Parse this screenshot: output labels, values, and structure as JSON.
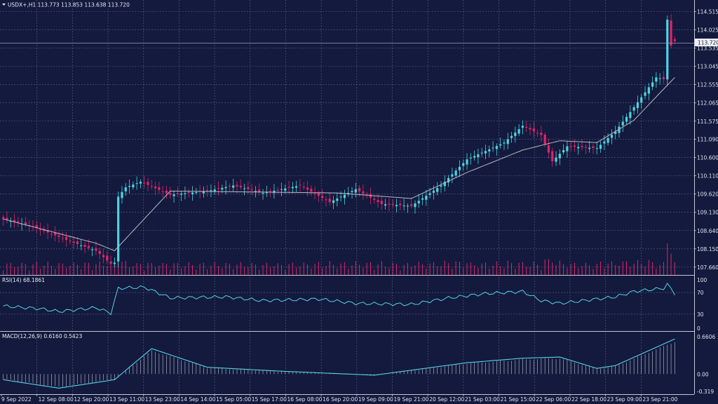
{
  "symbol_header": "USDX+,H1  113.773 113.853 113.638 113.720",
  "current_price_tag": "113.720",
  "price_axis_labels": [
    "114.515",
    "114.025",
    "113.535",
    "113.045",
    "112.555",
    "112.065",
    "111.575",
    "111.090",
    "110.600",
    "110.110",
    "109.620",
    "109.130",
    "108.640",
    "108.150",
    "107.660"
  ],
  "time_axis_labels": [
    "9 Sep 2022",
    "12 Sep 08:00",
    "12 Sep 20:00",
    "13 Sep 11:00",
    "13 Sep 23:00",
    "14 Sep 14:00",
    "15 Sep 05:00",
    "15 Sep 17:00",
    "16 Sep 08:00",
    "16 Sep 20:00",
    "19 Sep 09:00",
    "19 Sep 21:00",
    "20 Sep 12:00",
    "21 Sep 03:00",
    "21 Sep 15:00",
    "22 Sep 06:00",
    "22 Sep 18:00",
    "23 Sep 09:00",
    "23 Sep 21:00"
  ],
  "rsi_header": "RSI(14) 68.1861",
  "rsi_axis_labels": [
    "100",
    "70",
    "30",
    "0"
  ],
  "macd_header": "MACD(12,26,9) 0.6160 0.5423",
  "macd_axis_labels": [
    "0.6606",
    "0.00",
    "-0.319"
  ],
  "colors": {
    "background": "#131a3d",
    "bull": "#4fd3e0",
    "bear": "#e0246a",
    "ma": "#b8b8c4",
    "grid": "#5a6285",
    "indicator": "#57d2e6"
  },
  "chart_data": {
    "type": "candlestick",
    "symbol": "USDX+",
    "timeframe": "H1",
    "ohlc_last": {
      "open": 113.773,
      "high": 113.853,
      "low": 113.638,
      "close": 113.72
    },
    "ylim": [
      107.45,
      114.75
    ],
    "grid": true,
    "price_anchors": [
      {
        "t": 0,
        "p": 108.95
      },
      {
        "t": 8,
        "p": 108.75
      },
      {
        "t": 18,
        "p": 108.35
      },
      {
        "t": 25,
        "p": 108.1
      },
      {
        "t": 29,
        "p": 107.75
      },
      {
        "t": 30,
        "p": 107.78
      },
      {
        "t": 31,
        "p": 109.55
      },
      {
        "t": 33,
        "p": 109.8
      },
      {
        "t": 37,
        "p": 109.95
      },
      {
        "t": 45,
        "p": 109.6
      },
      {
        "t": 55,
        "p": 109.7
      },
      {
        "t": 62,
        "p": 109.85
      },
      {
        "t": 70,
        "p": 109.65
      },
      {
        "t": 80,
        "p": 109.85
      },
      {
        "t": 88,
        "p": 109.4
      },
      {
        "t": 95,
        "p": 109.75
      },
      {
        "t": 102,
        "p": 109.35
      },
      {
        "t": 110,
        "p": 109.3
      },
      {
        "t": 118,
        "p": 109.85
      },
      {
        "t": 125,
        "p": 110.55
      },
      {
        "t": 135,
        "p": 111.0
      },
      {
        "t": 140,
        "p": 111.45
      },
      {
        "t": 145,
        "p": 111.2
      },
      {
        "t": 148,
        "p": 110.5
      },
      {
        "t": 152,
        "p": 110.9
      },
      {
        "t": 160,
        "p": 110.85
      },
      {
        "t": 165,
        "p": 111.3
      },
      {
        "t": 170,
        "p": 111.95
      },
      {
        "t": 176,
        "p": 112.75
      },
      {
        "t": 178,
        "p": 112.7
      },
      {
        "t": 179,
        "p": 114.3
      },
      {
        "t": 180,
        "p": 113.6
      },
      {
        "t": 181,
        "p": 113.72
      }
    ],
    "ma_anchors": [
      {
        "t": 0,
        "p": 108.95
      },
      {
        "t": 25,
        "p": 108.3
      },
      {
        "t": 30,
        "p": 108.1
      },
      {
        "t": 45,
        "p": 109.7
      },
      {
        "t": 90,
        "p": 109.65
      },
      {
        "t": 110,
        "p": 109.5
      },
      {
        "t": 125,
        "p": 110.2
      },
      {
        "t": 140,
        "p": 110.8
      },
      {
        "t": 150,
        "p": 111.05
      },
      {
        "t": 160,
        "p": 111.0
      },
      {
        "t": 170,
        "p": 111.6
      },
      {
        "t": 181,
        "p": 112.75
      }
    ],
    "rsi": {
      "period": 14,
      "last": 68.1861,
      "ylim": [
        0,
        100
      ],
      "levels": [
        30,
        70
      ],
      "anchors": [
        {
          "t": 0,
          "v": 45
        },
        {
          "t": 10,
          "v": 40
        },
        {
          "t": 15,
          "v": 35
        },
        {
          "t": 25,
          "v": 42
        },
        {
          "t": 29,
          "v": 32
        },
        {
          "t": 31,
          "v": 78
        },
        {
          "t": 38,
          "v": 80
        },
        {
          "t": 45,
          "v": 60
        },
        {
          "t": 60,
          "v": 62
        },
        {
          "t": 70,
          "v": 55
        },
        {
          "t": 85,
          "v": 58
        },
        {
          "t": 95,
          "v": 50
        },
        {
          "t": 110,
          "v": 48
        },
        {
          "t": 120,
          "v": 60
        },
        {
          "t": 130,
          "v": 68
        },
        {
          "t": 140,
          "v": 72
        },
        {
          "t": 145,
          "v": 55
        },
        {
          "t": 150,
          "v": 50
        },
        {
          "t": 165,
          "v": 62
        },
        {
          "t": 170,
          "v": 72
        },
        {
          "t": 178,
          "v": 78
        },
        {
          "t": 179,
          "v": 85
        },
        {
          "t": 181,
          "v": 68.19
        }
      ]
    },
    "macd": {
      "params": [
        12,
        26,
        9
      ],
      "last_macd": 0.616,
      "last_signal": 0.5423,
      "ylim": [
        -0.319,
        0.6606
      ],
      "anchors": [
        {
          "t": 0,
          "v": -0.1
        },
        {
          "t": 15,
          "v": -0.25
        },
        {
          "t": 30,
          "v": -0.1
        },
        {
          "t": 40,
          "v": 0.45
        },
        {
          "t": 55,
          "v": 0.12
        },
        {
          "t": 75,
          "v": 0.05
        },
        {
          "t": 100,
          "v": -0.02
        },
        {
          "t": 125,
          "v": 0.2
        },
        {
          "t": 140,
          "v": 0.28
        },
        {
          "t": 150,
          "v": 0.3
        },
        {
          "t": 160,
          "v": 0.1
        },
        {
          "t": 165,
          "v": 0.15
        },
        {
          "t": 181,
          "v": 0.62
        }
      ]
    }
  }
}
